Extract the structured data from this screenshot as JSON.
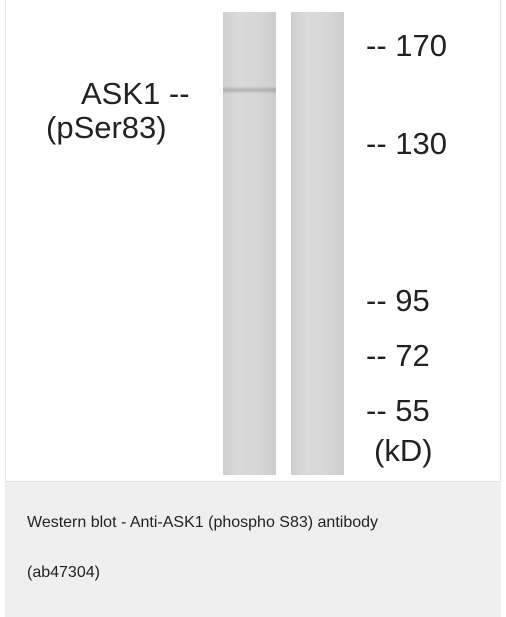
{
  "figure": {
    "band_label": [
      "ASK1 --",
      "(pSer83)"
    ],
    "markers": [
      "-- 170",
      "-- 130",
      "-- 95",
      "-- 72",
      "-- 55"
    ],
    "unit": "(kD)"
  },
  "caption": {
    "lines": [
      "Western blot - Anti-ASK1 (phospho S83) antibody",
      "(ab47304)"
    ]
  }
}
